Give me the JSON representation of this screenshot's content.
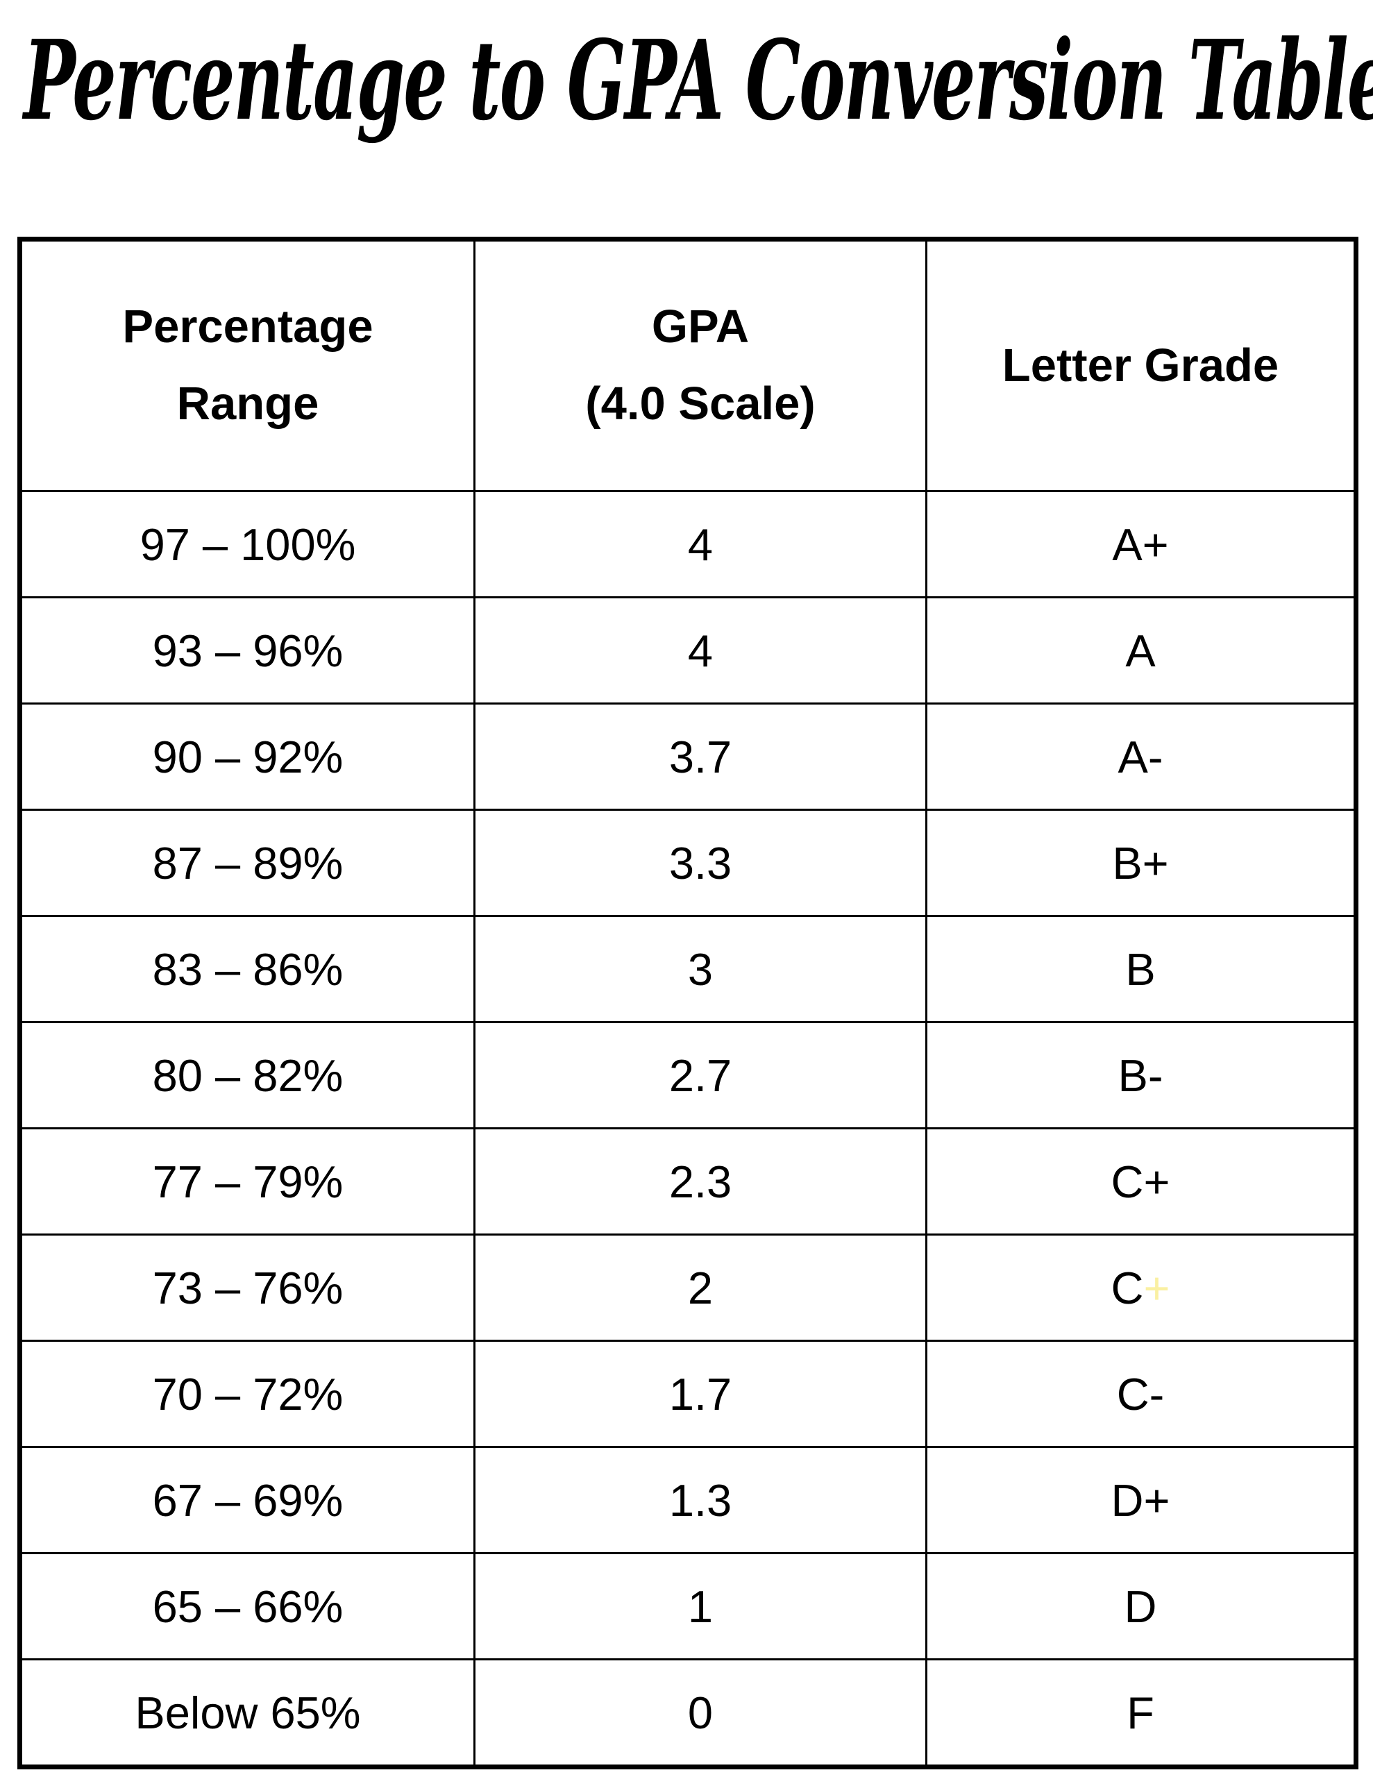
{
  "title": "Percentage to GPA Conversion Table",
  "table": {
    "headers": [
      {
        "id": "percentage-range",
        "lines": [
          "Percentage",
          "Range"
        ]
      },
      {
        "id": "gpa-scale",
        "lines": [
          "GPA",
          "(4.0 Scale)"
        ]
      },
      {
        "id": "letter-grade",
        "lines": [
          "Letter Grade"
        ]
      }
    ],
    "rows": [
      {
        "range": "97 – 100%",
        "gpa": "4",
        "grade": "A+"
      },
      {
        "range": "93 – 96%",
        "gpa": "4",
        "grade": "A"
      },
      {
        "range": "90 – 92%",
        "gpa": "3.7",
        "grade": "A-"
      },
      {
        "range": "87 – 89%",
        "gpa": "3.3",
        "grade": "B+"
      },
      {
        "range": "83 – 86%",
        "gpa": "3",
        "grade": "B"
      },
      {
        "range": "80 – 82%",
        "gpa": "2.7",
        "grade": "B-"
      },
      {
        "range": "77 – 79%",
        "gpa": "2.3",
        "grade": "C+"
      },
      {
        "range": "73 – 76%",
        "gpa": "2",
        "grade": "C",
        "grade_accent": "+",
        "grade_accent_color": "#faf0a2"
      },
      {
        "range": "70 – 72%",
        "gpa": "1.7",
        "grade": "C-"
      },
      {
        "range": "67 – 69%",
        "gpa": "1.3",
        "grade": "D+"
      },
      {
        "range": "65 – 66%",
        "gpa": "1",
        "grade": "D"
      },
      {
        "range": "Below 65%",
        "gpa": "0",
        "grade": "F"
      }
    ]
  },
  "colors": {
    "text": "#000000",
    "border": "#000000",
    "background": "#ffffff",
    "accent_plus": "#faf0a2"
  }
}
